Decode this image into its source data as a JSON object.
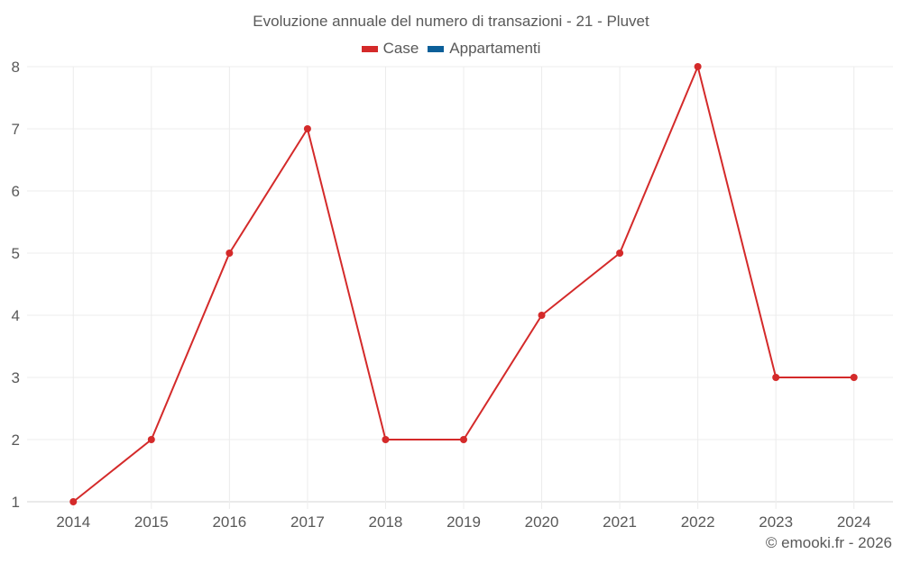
{
  "chart_data": {
    "type": "line",
    "title": "Evoluzione annuale del numero di transazioni - 21 - Pluvet",
    "xlabel": "",
    "ylabel": "",
    "categories": [
      "2014",
      "2015",
      "2016",
      "2017",
      "2018",
      "2019",
      "2020",
      "2021",
      "2022",
      "2023",
      "2024"
    ],
    "series": [
      {
        "name": "Case",
        "color": "#d42a2a",
        "values": [
          1,
          2,
          5,
          7,
          2,
          2,
          4,
          5,
          8,
          3,
          3
        ]
      },
      {
        "name": "Appartamenti",
        "color": "#0b5f99",
        "values": []
      }
    ],
    "ylim": [
      1,
      8
    ],
    "yticks": [
      1,
      2,
      3,
      4,
      5,
      6,
      7,
      8
    ],
    "grid": true,
    "legend_position": "top"
  },
  "credit": "© emooki.fr - 2026"
}
